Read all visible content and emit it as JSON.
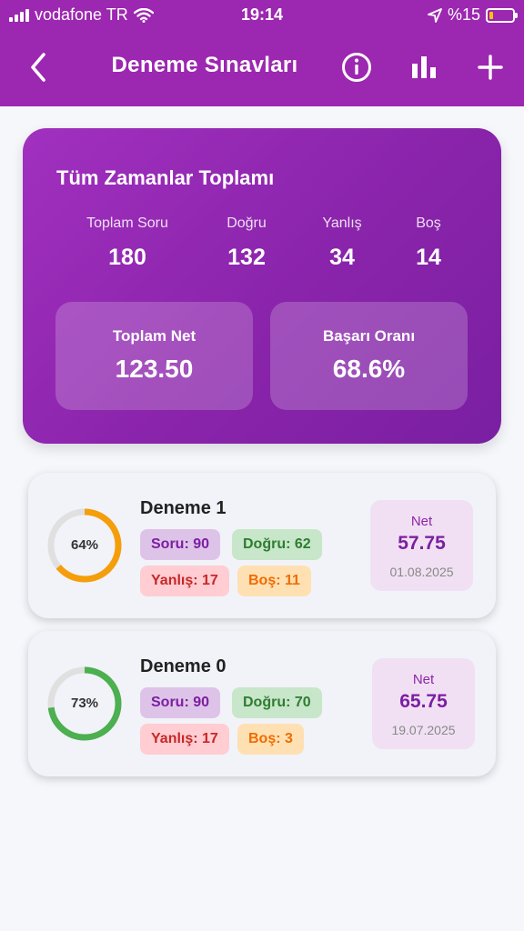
{
  "status": {
    "carrier": "vodafone TR",
    "time": "19:14",
    "battery": "%15"
  },
  "header": {
    "title": "Deneme Sınavları",
    "icons": [
      "back-chevron-icon",
      "info-icon",
      "bar-chart-icon",
      "plus-icon"
    ]
  },
  "summary": {
    "title": "Tüm Zamanlar Toplamı",
    "stats": [
      {
        "label": "Toplam Soru",
        "value": "180"
      },
      {
        "label": "Doğru",
        "value": "132"
      },
      {
        "label": "Yanlış",
        "value": "34"
      },
      {
        "label": "Boş",
        "value": "14"
      }
    ],
    "net": {
      "label": "Toplam Net",
      "value": "123.50"
    },
    "rate": {
      "label": "Başarı Oranı",
      "value": "68.6%"
    }
  },
  "exams": [
    {
      "name": "Deneme 1",
      "percent_label": "64%",
      "percent": 0.64,
      "ring_color": "#f59e0b",
      "soru": "Soru: 90",
      "dogru": "Doğru: 62",
      "yanlis": "Yanlış: 17",
      "bos": "Boş: 11",
      "net_label": "Net",
      "net": "57.75",
      "date": "01.08.2025"
    },
    {
      "name": "Deneme 0",
      "percent_label": "73%",
      "percent": 0.73,
      "ring_color": "#4caf50",
      "soru": "Soru: 90",
      "dogru": "Doğru: 70",
      "yanlis": "Yanlış: 17",
      "bos": "Boş: 3",
      "net_label": "Net",
      "net": "65.75",
      "date": "19.07.2025"
    }
  ],
  "colors": {
    "primary": "#9c27b0",
    "ring_track": "#e0e0e0"
  }
}
